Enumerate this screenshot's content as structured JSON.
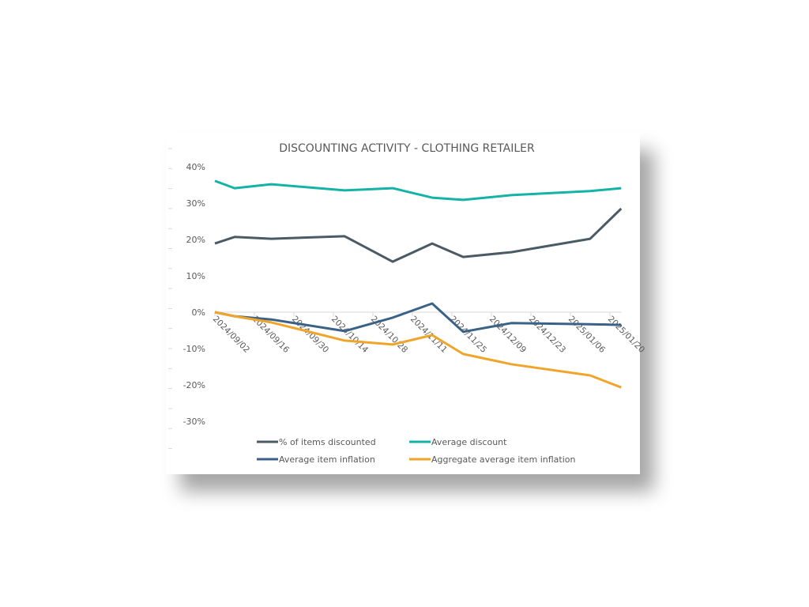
{
  "chart_data": {
    "type": "line",
    "title": "DISCOUNTING ACTIVITY - CLOTHING RETAILER",
    "xlabel": "",
    "ylabel": "",
    "x_axis_type": "date",
    "x": [
      "2024-09-02",
      "2024-09-09",
      "2024-09-22",
      "2024-10-18",
      "2024-11-04",
      "2024-11-18",
      "2024-11-29",
      "2024-12-16",
      "2025-01-13",
      "2025-01-24"
    ],
    "x_tick_labels": [
      "2024/09/02",
      "2024/09/16",
      "2024/09/30",
      "2024/10/14",
      "2024/10/28",
      "2024/11/11",
      "2024/11/25",
      "2024/12/09",
      "2024/12/23",
      "2025/01/06",
      "2025/01/20"
    ],
    "y_tick_labels": [
      "40%",
      "30%",
      "20%",
      "10%",
      "0%",
      "-10%",
      "-20%",
      "-30%"
    ],
    "y_ticks": [
      40,
      30,
      20,
      10,
      0,
      -10,
      -20,
      -30
    ],
    "ylim": [
      -30,
      40
    ],
    "y_unit": "%",
    "grid": false,
    "legend_placement": "bottom",
    "series": [
      {
        "name": "% of items discounted",
        "color": "#4a5b66",
        "values": [
          18.9,
          20.7,
          20.2,
          20.9,
          13.9,
          18.9,
          15.2,
          16.5,
          20.2,
          28.5
        ]
      },
      {
        "name": "Average discount",
        "color": "#13b3a8",
        "values": [
          36.1,
          34.1,
          35.2,
          33.5,
          34.1,
          31.5,
          30.9,
          32.2,
          33.3,
          34.1
        ]
      },
      {
        "name": "Average item inflation",
        "color": "#3a6288",
        "values": [
          0,
          -1.1,
          -2.0,
          -5.2,
          -1.5,
          2.4,
          -5.4,
          -3.0,
          -3.3,
          -3.5
        ]
      },
      {
        "name": "Aggregate average item inflation",
        "color": "#f0a52a",
        "values": [
          0,
          -1.1,
          -2.8,
          -7.8,
          -8.9,
          -6.3,
          -11.5,
          -14.3,
          -17.4,
          -20.7
        ]
      }
    ]
  }
}
